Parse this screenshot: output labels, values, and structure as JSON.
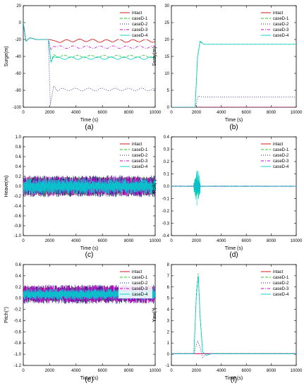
{
  "figure": {
    "legend_entries": [
      "intact",
      "caseD-1",
      "caseD-2",
      "caseD-3",
      "caseD-4"
    ],
    "series_colors": {
      "intact": "#cc0000",
      "caseD-1": "#22cc22",
      "caseD-2": "#1a1a80",
      "caseD-3": "#cc00cc",
      "caseD-4": "#00cccc"
    },
    "series_dash": {
      "intact": "",
      "caseD-1": "4,2",
      "caseD-2": "1,2",
      "caseD-3": "4,2,1,2",
      "caseD-4": ""
    }
  },
  "chart_data": [
    {
      "type": "line",
      "panel_label": "(a)",
      "xlabel": "Time (s)",
      "ylabel": "Surge(m)",
      "xlim": [
        0,
        10000
      ],
      "ylim": [
        -100,
        20
      ],
      "xticks": [
        0,
        2000,
        4000,
        6000,
        8000,
        10000
      ],
      "yticks": [
        -100,
        -80,
        -60,
        -40,
        -20,
        0,
        20
      ],
      "legend": "top-right",
      "series": [
        {
          "name": "intact",
          "x": [
            0,
            200,
            500,
            1000,
            1500,
            2000,
            2500,
            3000,
            4000,
            5000,
            6000,
            7000,
            8000,
            9000,
            10000
          ],
          "y": [
            0,
            -22,
            -18,
            -20,
            -20,
            -20,
            -22,
            -22,
            -21,
            -21,
            -22,
            -21,
            -22,
            -21,
            -22
          ]
        },
        {
          "name": "caseD-1",
          "x": [
            0,
            200,
            500,
            1000,
            1500,
            1900,
            2100,
            2300,
            2600,
            3000,
            4000,
            5000,
            6000,
            7000,
            8000,
            9000,
            10000
          ],
          "y": [
            0,
            -22,
            -18,
            -20,
            -20,
            -20,
            -46,
            -38,
            -40,
            -40,
            -40,
            -40,
            -40,
            -40,
            -40,
            -40,
            -40
          ]
        },
        {
          "name": "caseD-2",
          "x": [
            0,
            200,
            500,
            1000,
            1500,
            1900,
            2050,
            2300,
            2600,
            3000,
            4000,
            5000,
            6000,
            7000,
            8000,
            9000,
            10000
          ],
          "y": [
            0,
            -22,
            -18,
            -20,
            -20,
            -20,
            -97,
            -75,
            -80,
            -79,
            -79,
            -79,
            -79,
            -79,
            -79,
            -79,
            -79
          ]
        },
        {
          "name": "caseD-3",
          "x": [
            0,
            200,
            500,
            1000,
            1500,
            1900,
            2100,
            2300,
            2600,
            3000,
            4000,
            5000,
            6000,
            7000,
            8000,
            9000,
            10000
          ],
          "y": [
            0,
            -22,
            -18,
            -20,
            -20,
            -20,
            -32,
            -28,
            -29,
            -29,
            -29,
            -29,
            -29,
            -29,
            -29,
            -29,
            -29
          ]
        },
        {
          "name": "caseD-4",
          "x": [
            0,
            200,
            500,
            1000,
            1500,
            1900,
            2100,
            2300,
            2600,
            3000,
            4000,
            5000,
            6000,
            7000,
            8000,
            9000,
            10000
          ],
          "y": [
            0,
            -22,
            -18,
            -20,
            -20,
            -20,
            -47,
            -40,
            -42,
            -42,
            -42,
            -42,
            -42,
            -42,
            -42,
            -42,
            -42
          ]
        }
      ]
    },
    {
      "type": "line",
      "panel_label": "(b)",
      "xlabel": "Time (s)",
      "ylabel": "Sway(m)",
      "xlim": [
        0,
        10000
      ],
      "ylim": [
        0,
        30
      ],
      "xticks": [
        0,
        2000,
        4000,
        6000,
        8000,
        10000
      ],
      "yticks": [
        0,
        5,
        10,
        15,
        20,
        25,
        30
      ],
      "legend": "top-right",
      "series": [
        {
          "name": "intact",
          "x": [
            0,
            10000
          ],
          "y": [
            0,
            0
          ]
        },
        {
          "name": "caseD-1",
          "x": [
            0,
            1900,
            2100,
            2300,
            2600,
            3000,
            10000
          ],
          "y": [
            0,
            0,
            15,
            19.3,
            18.6,
            18.6,
            18.6
          ]
        },
        {
          "name": "caseD-2",
          "x": [
            0,
            1900,
            2150,
            2400,
            3000,
            10000
          ],
          "y": [
            0,
            0,
            3.3,
            3.1,
            3.0,
            3.0
          ]
        },
        {
          "name": "caseD-3",
          "x": [
            0,
            10000
          ],
          "y": [
            0,
            0
          ]
        },
        {
          "name": "caseD-4",
          "x": [
            0,
            1900,
            2100,
            2300,
            2600,
            3000,
            10000
          ],
          "y": [
            0,
            0,
            15,
            19.5,
            18.6,
            18.6,
            18.6
          ]
        }
      ]
    },
    {
      "type": "line",
      "panel_label": "(c)",
      "xlabel": "Time (s)",
      "ylabel": "Heave(m)",
      "xlim": [
        0,
        10000
      ],
      "ylim": [
        -1.0,
        1.0
      ],
      "xticks": [
        0,
        2000,
        4000,
        6000,
        8000,
        10000
      ],
      "yticks": [
        -1.0,
        -0.8,
        -0.6,
        -0.4,
        -0.2,
        0.0,
        0.2,
        0.4,
        0.6,
        0.8,
        1.0
      ],
      "legend": "top-right",
      "noise": {
        "center": 0.0,
        "amplitude": [
          0.18,
          0.2,
          0.22,
          0.2,
          0.16
        ],
        "x_range": [
          0,
          10000
        ]
      },
      "series": [
        {
          "name": "intact"
        },
        {
          "name": "caseD-1"
        },
        {
          "name": "caseD-2"
        },
        {
          "name": "caseD-3"
        },
        {
          "name": "caseD-4"
        }
      ]
    },
    {
      "type": "line",
      "panel_label": "(d)",
      "xlabel": "Time (s)",
      "ylabel": "Roll(°)",
      "xlim": [
        0,
        10000
      ],
      "ylim": [
        -0.4,
        0.4
      ],
      "xticks": [
        0,
        2000,
        4000,
        6000,
        8000,
        10000
      ],
      "yticks": [
        -0.4,
        -0.3,
        -0.2,
        -0.1,
        0.0,
        0.1,
        0.2,
        0.3,
        0.4
      ],
      "legend": "top-right",
      "noise": {
        "center": 0.0,
        "amplitude": [
          0.003,
          0.003,
          0.004,
          0.003,
          0.003
        ],
        "x_range": [
          0,
          10000
        ],
        "burst": {
          "x_range": [
            1800,
            2300
          ],
          "amplitude": [
            0.0,
            0.1,
            0.06,
            0.04,
            0.16
          ]
        }
      },
      "series": [
        {
          "name": "intact"
        },
        {
          "name": "caseD-1"
        },
        {
          "name": "caseD-2"
        },
        {
          "name": "caseD-3"
        },
        {
          "name": "caseD-4"
        }
      ]
    },
    {
      "type": "line",
      "panel_label": "(e)",
      "xlabel": "Time (s)",
      "ylabel": "Pitch(°)",
      "xlim": [
        0,
        10000
      ],
      "ylim": [
        -1.2,
        0.6
      ],
      "xticks": [
        0,
        2000,
        4000,
        6000,
        8000,
        10000
      ],
      "yticks": [
        -1.2,
        -1.0,
        -0.8,
        -0.6,
        -0.4,
        -0.2,
        0.0,
        0.2,
        0.4,
        0.6
      ],
      "legend": "top-right",
      "noise": {
        "center": 0.07,
        "amplitude": [
          0.12,
          0.14,
          0.17,
          0.16,
          0.1
        ],
        "x_range": [
          0,
          10000
        ]
      },
      "series": [
        {
          "name": "intact"
        },
        {
          "name": "caseD-1"
        },
        {
          "name": "caseD-2"
        },
        {
          "name": "caseD-3"
        },
        {
          "name": "caseD-4"
        }
      ]
    },
    {
      "type": "line",
      "panel_label": "(f)",
      "xlabel": "Time (s)",
      "ylabel": "Yaw(°)",
      "xlim": [
        0,
        10000
      ],
      "ylim": [
        -1,
        8
      ],
      "xticks": [
        0,
        2000,
        4000,
        6000,
        8000,
        10000
      ],
      "yticks": [
        -1,
        0,
        1,
        2,
        3,
        4,
        5,
        6,
        7,
        8
      ],
      "legend": "top-right",
      "series": [
        {
          "name": "intact",
          "x": [
            0,
            10000
          ],
          "y": [
            0.05,
            0.05
          ]
        },
        {
          "name": "caseD-1",
          "x": [
            0,
            1800,
            2000,
            2150,
            2300,
            2500,
            2800,
            3200,
            10000
          ],
          "y": [
            0.05,
            0.05,
            5.5,
            7.2,
            3.5,
            0.2,
            -0.1,
            0.05,
            0.05
          ]
        },
        {
          "name": "caseD-2",
          "x": [
            0,
            1800,
            2100,
            2300,
            2500,
            2800,
            10000
          ],
          "y": [
            0.05,
            0.05,
            1.2,
            0.6,
            -0.3,
            0.05,
            0.05
          ]
        },
        {
          "name": "caseD-3",
          "x": [
            0,
            10000
          ],
          "y": [
            0.05,
            0.05
          ]
        },
        {
          "name": "caseD-4",
          "x": [
            0,
            1800,
            2000,
            2150,
            2300,
            2500,
            2800,
            3200,
            10000
          ],
          "y": [
            0.05,
            0.05,
            5.2,
            7.0,
            3.3,
            0.2,
            -0.1,
            0.05,
            0.05
          ]
        }
      ]
    }
  ]
}
